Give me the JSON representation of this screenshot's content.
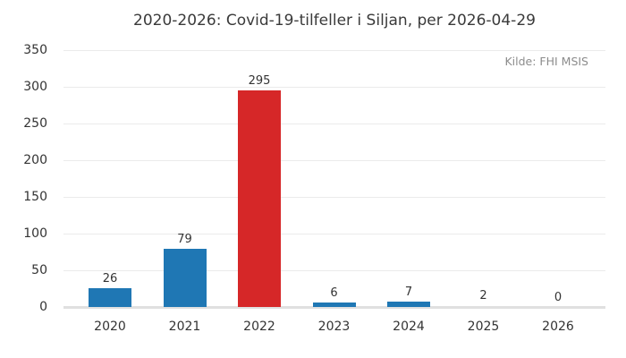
{
  "title": "2020-2026: Covid-19-tilfeller i Siljan, per 2026-04-29",
  "source": "Kilde: FHI MSIS",
  "colors": {
    "bar_default": "#1f77b4",
    "bar_highlight": "#d62728",
    "grid": "#ebebeb",
    "axis_line": "#e0e0e0",
    "title_text": "#3a3a3a",
    "tick_text": "#333333",
    "source_text": "#8c8c8c",
    "background": "#ffffff"
  },
  "chart_data": {
    "type": "bar",
    "title": "2020-2026: Covid-19-tilfeller i Siljan, per 2026-04-29",
    "source": "Kilde: FHI MSIS",
    "categories": [
      "2020",
      "2021",
      "2022",
      "2023",
      "2024",
      "2025",
      "2026"
    ],
    "values": [
      26,
      79,
      295,
      6,
      7,
      2,
      0
    ],
    "bar_colors": [
      "#1f77b4",
      "#1f77b4",
      "#d62728",
      "#1f77b4",
      "#1f77b4",
      "#1f77b4",
      "#1f77b4"
    ],
    "value_labels": [
      "26",
      "79",
      "295",
      "6",
      "7",
      "2",
      "0"
    ],
    "xlabel": "",
    "ylabel": "",
    "ylim": [
      0,
      350
    ],
    "yticks": [
      0,
      50,
      100,
      150,
      200,
      250,
      300,
      350
    ],
    "grid": "horizontal",
    "legend": "none",
    "annotations": "value labels above bars"
  }
}
